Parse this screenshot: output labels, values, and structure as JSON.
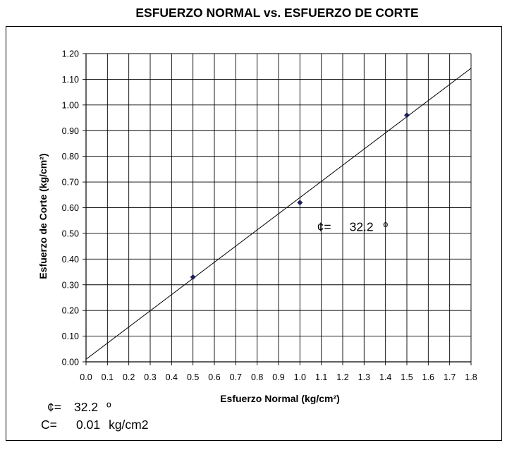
{
  "chart_data": {
    "type": "scatter",
    "title": "ESFUERZO NORMAL vs. ESFUERZO DE CORTE",
    "xlabel": "Esfuerzo Normal (kg/cm²)",
    "ylabel": "Esfuerzo de Corte (kg/cm²)",
    "xlim": [
      0,
      1.8
    ],
    "ylim": [
      0,
      1.2
    ],
    "x_ticks": [
      "0.0",
      "0.1",
      "0.2",
      "0.3",
      "0.4",
      "0.5",
      "0.6",
      "0.7",
      "0.8",
      "0.9",
      "1.0",
      "1.1",
      "1.2",
      "1.3",
      "1.4",
      "1.5",
      "1.6",
      "1.7",
      "1.8"
    ],
    "y_ticks": [
      "0.00",
      "0.10",
      "0.20",
      "0.30",
      "0.40",
      "0.50",
      "0.60",
      "0.70",
      "0.80",
      "0.90",
      "1.00",
      "1.10",
      "1.20"
    ],
    "grid": true,
    "series": [
      {
        "x": [
          0.5,
          1.0,
          1.5
        ],
        "y": [
          0.33,
          0.62,
          0.96
        ],
        "marker": "diamond",
        "color": "#1f1f5c"
      }
    ],
    "trendline": {
      "x": [
        0,
        1.8
      ],
      "y": [
        0.01,
        1.143
      ],
      "color": "#000000"
    },
    "annotation": {
      "symbol": "¢=",
      "value": "32.2",
      "unit": "º",
      "x": 1.08,
      "y": 0.51
    }
  },
  "legend": {
    "phi_symbol": "¢=",
    "phi_value": "32.2",
    "phi_unit": "º",
    "c_symbol": "C=",
    "c_value": "0.01",
    "c_unit": "kg/cm2"
  }
}
